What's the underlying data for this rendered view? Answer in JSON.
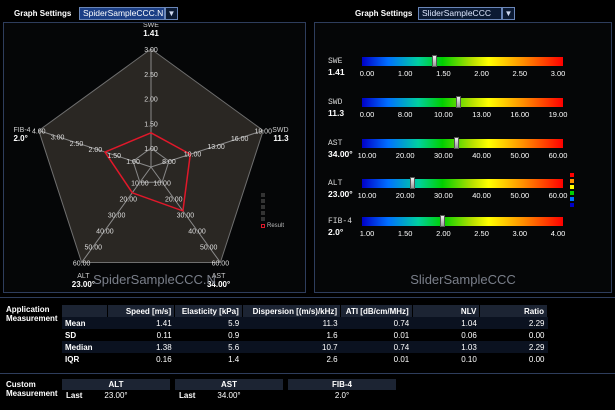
{
  "left_header": {
    "label": "Graph Settings",
    "selected": "SpiderSampleCCC.N",
    "dropdown_icon": "chevron-down-icon"
  },
  "right_header": {
    "label": "Graph Settings",
    "selected": "SliderSampleCCC",
    "dropdown_icon": "chevron-down-icon"
  },
  "spider": {
    "caption": "SpiderSampleCCC.N",
    "legend_label": "Result",
    "axes": [
      {
        "name": "SWE",
        "value": "1.41",
        "ticks": [
          "1.00",
          "1.50",
          "2.00",
          "2.50",
          "3.00"
        ]
      },
      {
        "name": "SWD",
        "value": "11.3",
        "ticks": [
          "8.00",
          "10.00",
          "13.00",
          "16.00",
          "19.00"
        ]
      },
      {
        "name": "AST",
        "value": "34.00°",
        "ticks": [
          "10.00",
          "20.00",
          "30.00",
          "40.00",
          "50.00",
          "60.00"
        ]
      },
      {
        "name": "ALT",
        "value": "23.00°",
        "ticks": [
          "10.00",
          "20.00",
          "30.00",
          "40.00",
          "50.00",
          "60.00"
        ]
      },
      {
        "name": "FIB-4",
        "value": "2.0°",
        "ticks": [
          "1.00",
          "1.50",
          "2.00",
          "2.50",
          "3.00",
          "4.00"
        ]
      }
    ],
    "result_levels": [
      0.29,
      0.35,
      0.46,
      0.27,
      0.41
    ],
    "colors": {
      "web_fill": "#2a2723",
      "web_line": "#8a8a8a",
      "result": "#e0182a"
    }
  },
  "slider": {
    "caption": "SliderSampleCCC",
    "rows": [
      {
        "name": "SWE",
        "value": "1.41",
        "ticks": [
          "0.00",
          "1.00",
          "1.50",
          "2.00",
          "2.50",
          "3.00"
        ],
        "level": 0.36
      },
      {
        "name": "SWD",
        "value": "11.3",
        "ticks": [
          "0.00",
          "8.00",
          "10.00",
          "13.00",
          "16.00",
          "19.00"
        ],
        "level": 0.48
      },
      {
        "name": "AST",
        "value": "34.00°",
        "ticks": [
          "10.00",
          "20.00",
          "30.00",
          "40.00",
          "50.00",
          "60.00"
        ],
        "level": 0.47
      },
      {
        "name": "ALT",
        "value": "23.00°",
        "ticks": [
          "10.00",
          "20.00",
          "30.00",
          "40.00",
          "50.00",
          "60.00"
        ],
        "level": 0.25
      },
      {
        "name": "FIB-4",
        "value": "2.0°",
        "ticks": [
          "1.00",
          "1.50",
          "2.00",
          "2.50",
          "3.00",
          "4.00"
        ],
        "level": 0.4
      }
    ],
    "legend_colors": [
      "#ff0000",
      "#ff9000",
      "#ffff00",
      "#00d000",
      "#0070ff",
      "#0000c8"
    ]
  },
  "application": {
    "title_line1": "Application",
    "title_line2": "Measurement",
    "headers": [
      "",
      "Speed [m/s]",
      "Elasticity [kPa]",
      "Dispersion [(m/s)/kHz]",
      "ATI [dB/cm/MHz]",
      "NLV",
      "Ratio"
    ],
    "rows": [
      {
        "label": "Mean",
        "cells": [
          "1.41",
          "5.9",
          "11.3",
          "0.74",
          "1.04",
          "2.29"
        ]
      },
      {
        "label": "SD",
        "cells": [
          "0.11",
          "0.9",
          "1.6",
          "0.01",
          "0.06",
          "0.00"
        ]
      },
      {
        "label": "Median",
        "cells": [
          "1.38",
          "5.6",
          "10.7",
          "0.74",
          "1.03",
          "2.29"
        ]
      },
      {
        "label": "IQR",
        "cells": [
          "0.16",
          "1.4",
          "2.6",
          "0.01",
          "0.10",
          "0.00"
        ]
      }
    ]
  },
  "custom": {
    "title_line1": "Custom",
    "title_line2": "Measurement",
    "groups": [
      {
        "header": "ALT",
        "row_label": "Last",
        "value": "23.00°"
      },
      {
        "header": "AST",
        "row_label": "Last",
        "value": "34.00°"
      },
      {
        "header": "FIB-4",
        "row_label": "",
        "value": "2.0°"
      }
    ]
  }
}
